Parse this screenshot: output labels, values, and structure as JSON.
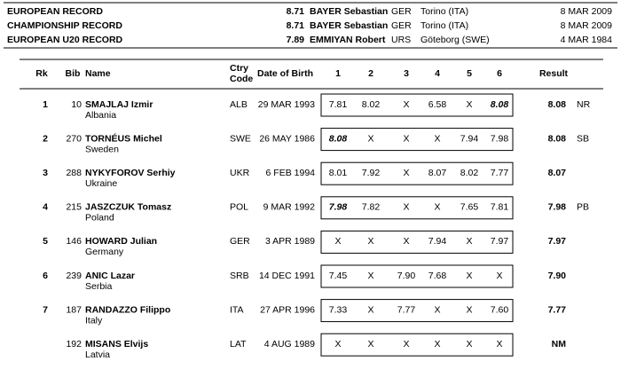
{
  "records": [
    {
      "label": "EUROPEAN RECORD",
      "mark": "8.71",
      "name": "BAYER Sebastian",
      "country": "GER",
      "place": "Torino (ITA)",
      "date": "8 MAR 2009"
    },
    {
      "label": "CHAMPIONSHIP RECORD",
      "mark": "8.71",
      "name": "BAYER Sebastian",
      "country": "GER",
      "place": "Torino (ITA)",
      "date": "8 MAR 2009"
    },
    {
      "label": "EUROPEAN U20 RECORD",
      "mark": "7.89",
      "name": "EMMIYAN Robert",
      "country": "URS",
      "place": "Göteborg (SWE)",
      "date": "4 MAR 1984"
    }
  ],
  "header": {
    "rank": "Rk",
    "bib": "Bib",
    "name": "Name",
    "ctry": [
      "Ctry",
      "Code"
    ],
    "dob": "Date of Birth",
    "attempts": [
      "1",
      "2",
      "3",
      "4",
      "5",
      "6"
    ],
    "result": "Result"
  },
  "rows": [
    {
      "rank": "1",
      "bib": "10",
      "name": "SMAJLAJ Izmir",
      "country_name": "Albania",
      "code": "ALB",
      "dob": "29 MAR 1993",
      "attempts": [
        {
          "mark": "7.81"
        },
        {
          "mark": "8.02"
        },
        {
          "mark": "X"
        },
        {
          "mark": "6.58"
        },
        {
          "mark": "X"
        },
        {
          "mark": "8.08",
          "best": true
        }
      ],
      "result": "8.08",
      "note": "NR"
    },
    {
      "rank": "2",
      "bib": "270",
      "name": "TORNÉUS Michel",
      "country_name": "Sweden",
      "code": "SWE",
      "dob": "26 MAY 1986",
      "attempts": [
        {
          "mark": "8.08",
          "best": true
        },
        {
          "mark": "X"
        },
        {
          "mark": "X"
        },
        {
          "mark": "X"
        },
        {
          "mark": "7.94"
        },
        {
          "mark": "7.98"
        }
      ],
      "result": "8.08",
      "note": "SB"
    },
    {
      "rank": "3",
      "bib": "288",
      "name": "NYKYFOROV Serhiy",
      "country_name": "Ukraine",
      "code": "UKR",
      "dob": "6 FEB 1994",
      "attempts": [
        {
          "mark": "8.01"
        },
        {
          "mark": "7.92"
        },
        {
          "mark": "X"
        },
        {
          "mark": "8.07"
        },
        {
          "mark": "8.02"
        },
        {
          "mark": "7.77"
        }
      ],
      "result": "8.07",
      "note": null
    },
    {
      "rank": "4",
      "bib": "215",
      "name": "JASZCZUK Tomasz",
      "country_name": "Poland",
      "code": "POL",
      "dob": "9 MAR 1992",
      "attempts": [
        {
          "mark": "7.98",
          "best": true
        },
        {
          "mark": "7.82"
        },
        {
          "mark": "X"
        },
        {
          "mark": "X"
        },
        {
          "mark": "7.65"
        },
        {
          "mark": "7.81"
        }
      ],
      "result": "7.98",
      "note": "PB"
    },
    {
      "rank": "5",
      "bib": "146",
      "name": "HOWARD Julian",
      "country_name": "Germany",
      "code": "GER",
      "dob": "3 APR 1989",
      "attempts": [
        {
          "mark": "X"
        },
        {
          "mark": "X"
        },
        {
          "mark": "X"
        },
        {
          "mark": "7.94"
        },
        {
          "mark": "X"
        },
        {
          "mark": "7.97"
        }
      ],
      "result": "7.97",
      "note": null
    },
    {
      "rank": "6",
      "bib": "239",
      "name": "ANIC Lazar",
      "country_name": "Serbia",
      "code": "SRB",
      "dob": "14 DEC 1991",
      "attempts": [
        {
          "mark": "7.45"
        },
        {
          "mark": "X"
        },
        {
          "mark": "7.90"
        },
        {
          "mark": "7.68"
        },
        {
          "mark": "X"
        },
        {
          "mark": "X"
        }
      ],
      "result": "7.90",
      "note": null
    },
    {
      "rank": "7",
      "bib": "187",
      "name": "RANDAZZO Filippo",
      "country_name": "Italy",
      "code": "ITA",
      "dob": "27 APR 1996",
      "attempts": [
        {
          "mark": "7.33"
        },
        {
          "mark": "X"
        },
        {
          "mark": "7.77"
        },
        {
          "mark": "X"
        },
        {
          "mark": "X"
        },
        {
          "mark": "7.60"
        }
      ],
      "result": "7.77",
      "note": null
    },
    {
      "rank": null,
      "bib": "192",
      "name": "MISANS Elvijs",
      "country_name": "Latvia",
      "code": "LAT",
      "dob": "4 AUG 1989",
      "attempts": [
        {
          "mark": "X"
        },
        {
          "mark": "X"
        },
        {
          "mark": "X"
        },
        {
          "mark": "X"
        },
        {
          "mark": "X"
        },
        {
          "mark": "X"
        }
      ],
      "result": "NM",
      "note": null
    }
  ]
}
